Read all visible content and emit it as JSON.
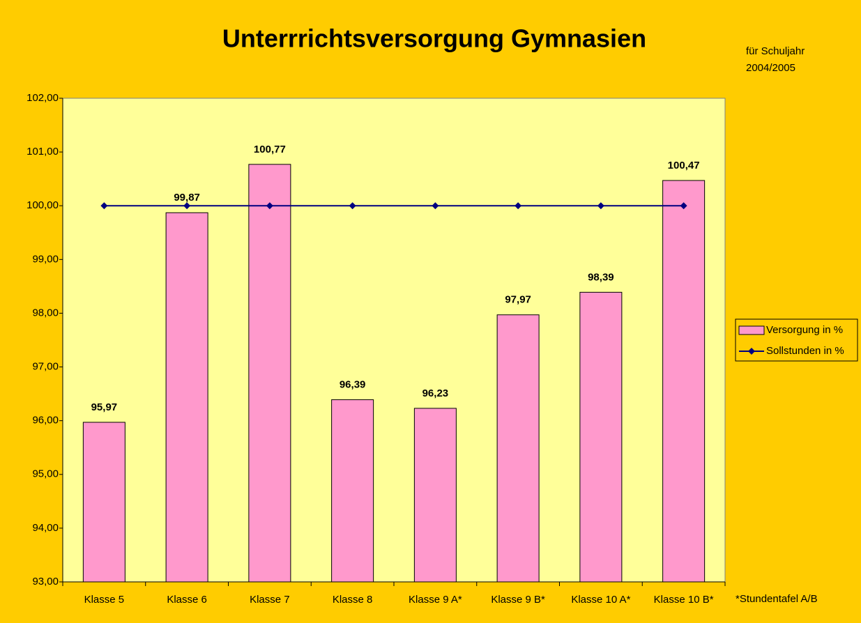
{
  "chart_data": {
    "type": "bar",
    "title": "Unterrrichtsversorgung Gymnasien",
    "annotations": [
      "für Schuljahr",
      "2004/2005",
      "*Stundentafel A/B"
    ],
    "categories": [
      "Klasse 5",
      "Klasse 6",
      "Klasse 7",
      "Klasse 8",
      "Klasse 9 A*",
      "Klasse 9 B*",
      "Klasse 10 A*",
      "Klasse 10 B*"
    ],
    "series": [
      {
        "name": "Versorgung in %",
        "type": "bar",
        "color": "#ff99cc",
        "values": [
          95.97,
          99.87,
          100.77,
          96.39,
          96.23,
          97.97,
          98.39,
          100.47
        ],
        "value_labels": [
          "95,97",
          "99,87",
          "100,77",
          "96,39",
          "96,23",
          "97,97",
          "98,39",
          "100,47"
        ]
      },
      {
        "name": "Sollstunden in %",
        "type": "line",
        "color": "#000080",
        "values": [
          100,
          100,
          100,
          100,
          100,
          100,
          100,
          100
        ]
      }
    ],
    "ylim": [
      93,
      102
    ],
    "yticks": [
      {
        "value": 93,
        "label": "93,00"
      },
      {
        "value": 94,
        "label": "94,00"
      },
      {
        "value": 95,
        "label": "95,00"
      },
      {
        "value": 96,
        "label": "96,00"
      },
      {
        "value": 97,
        "label": "97,00"
      },
      {
        "value": 98,
        "label": "98,00"
      },
      {
        "value": 99,
        "label": "99,00"
      },
      {
        "value": 100,
        "label": "100,00"
      },
      {
        "value": 101,
        "label": "101,00"
      },
      {
        "value": 102,
        "label": "102,00"
      }
    ],
    "grid": false,
    "legend": "right"
  }
}
